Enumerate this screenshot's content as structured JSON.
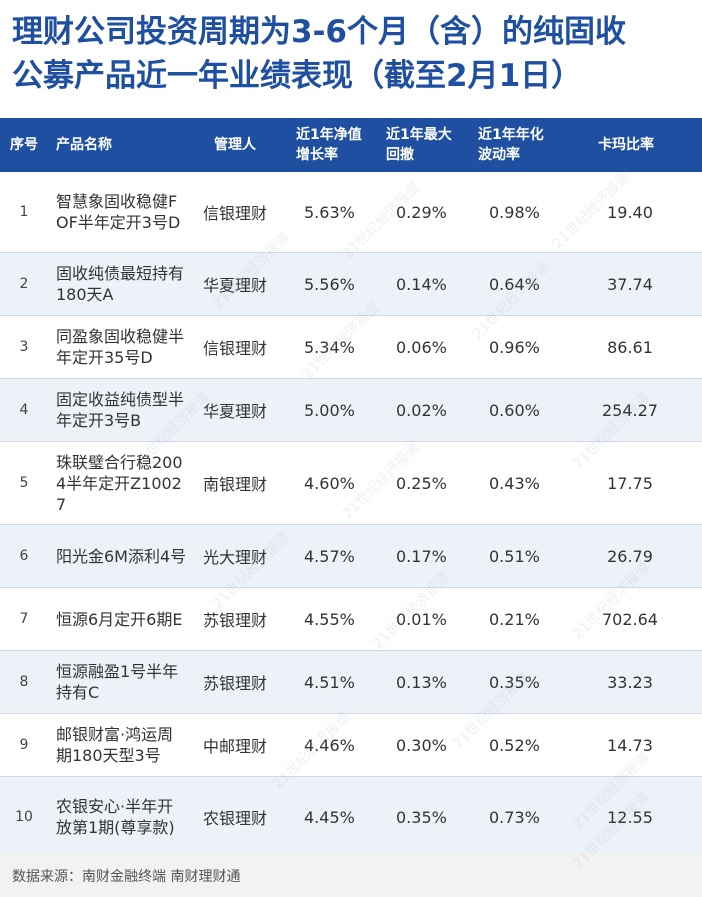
{
  "title": {
    "line1": "理财公司投资周期为3-6个月（含）的纯固收",
    "line2": "公募产品近一年业绩表现（截至2月1日）"
  },
  "headers": {
    "idx": "序号",
    "name": "产品名称",
    "manager": "管理人",
    "growth": "近1年净值\n增长率",
    "drawdown": "近1年最大\n回撤",
    "volatility": "近1年年化\n波动率",
    "calmar": "卡玛比率"
  },
  "rows": [
    {
      "idx": "1",
      "name": "智慧象固收稳健FOF半年定开3号D",
      "manager": "信银理财",
      "growth": "5.63%",
      "drawdown": "0.29%",
      "volatility": "0.98%",
      "calmar": "19.40"
    },
    {
      "idx": "2",
      "name": "固收纯债最短持有180天A",
      "manager": "华夏理财",
      "growth": "5.56%",
      "drawdown": "0.14%",
      "volatility": "0.64%",
      "calmar": "37.74"
    },
    {
      "idx": "3",
      "name": "同盈象固收稳健半年定开35号D",
      "manager": "信银理财",
      "growth": "5.34%",
      "drawdown": "0.06%",
      "volatility": "0.96%",
      "calmar": "86.61"
    },
    {
      "idx": "4",
      "name": "固定收益纯债型半年定开3号B",
      "manager": "华夏理财",
      "growth": "5.00%",
      "drawdown": "0.02%",
      "volatility": "0.60%",
      "calmar": "254.27"
    },
    {
      "idx": "5",
      "name": "珠联璧合行稳2004半年定开Z10027",
      "manager": "南银理财",
      "growth": "4.60%",
      "drawdown": "0.25%",
      "volatility": "0.43%",
      "calmar": "17.75"
    },
    {
      "idx": "6",
      "name": "阳光金6M添利4号",
      "manager": "光大理财",
      "growth": "4.57%",
      "drawdown": "0.17%",
      "volatility": "0.51%",
      "calmar": "26.79"
    },
    {
      "idx": "7",
      "name": "恒源6月定开6期E",
      "manager": "苏银理财",
      "growth": "4.55%",
      "drawdown": "0.01%",
      "volatility": "0.21%",
      "calmar": "702.64"
    },
    {
      "idx": "8",
      "name": "恒源融盈1号半年持有C",
      "manager": "苏银理财",
      "growth": "4.51%",
      "drawdown": "0.13%",
      "volatility": "0.35%",
      "calmar": "33.23"
    },
    {
      "idx": "9",
      "name": "邮银财富·鸿运周期180天型3号",
      "manager": "中邮理财",
      "growth": "4.46%",
      "drawdown": "0.30%",
      "volatility": "0.52%",
      "calmar": "14.73"
    },
    {
      "idx": "10",
      "name": "农银安心·半年开放第1期(尊享款)",
      "manager": "农银理财",
      "growth": "4.45%",
      "drawdown": "0.35%",
      "volatility": "0.73%",
      "calmar": "12.55"
    }
  ],
  "source": "数据来源：南财金融终端 南财理财通",
  "watermark": "21世纪经济报道",
  "colors": {
    "accent": "#1f4fa0",
    "row_alt": "#edf2f9"
  }
}
